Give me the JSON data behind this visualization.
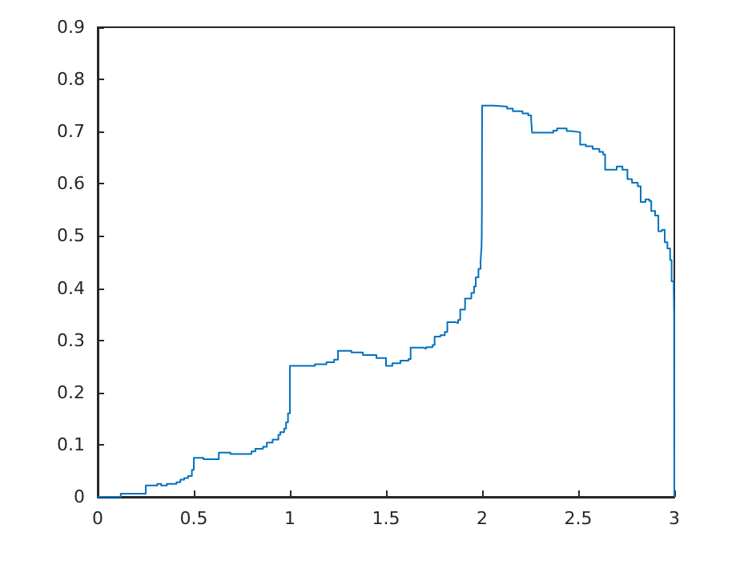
{
  "chart_data": {
    "type": "step",
    "color": "#0072bd",
    "xlim": [
      0,
      3
    ],
    "ylim": [
      0,
      0.9
    ],
    "xticks": [
      0,
      0.5,
      1,
      1.5,
      2,
      2.5,
      3
    ],
    "yticks": [
      0,
      0.1,
      0.2,
      0.3,
      0.4,
      0.5,
      0.6,
      0.7,
      0.8,
      0.9
    ],
    "grid": false,
    "marker": "none",
    "x": [
      0,
      0.12,
      0.25,
      0.31,
      0.33,
      0.36,
      0.41,
      0.43,
      0.45,
      0.47,
      0.49,
      0.5,
      0.55,
      0.63,
      0.69,
      0.8,
      0.82,
      0.86,
      0.88,
      0.91,
      0.94,
      0.95,
      0.97,
      0.98,
      0.99,
      1.0,
      1.13,
      1.19,
      1.23,
      1.25,
      1.32,
      1.38,
      1.45,
      1.5,
      1.533,
      1.575,
      1.617,
      1.628,
      1.694,
      1.708,
      1.742,
      1.753,
      1.783,
      1.806,
      1.819,
      1.861,
      1.875,
      1.886,
      1.911,
      1.944,
      1.958,
      1.967,
      1.981,
      1.992,
      1.997,
      1.998,
      1.999,
      2.0,
      2.06,
      2.13,
      2.16,
      2.21,
      2.24,
      2.255,
      2.26,
      2.37,
      2.39,
      2.44,
      2.46,
      2.51,
      2.54,
      2.575,
      2.61,
      2.63,
      2.64,
      2.7,
      2.73,
      2.756,
      2.78,
      2.81,
      2.825,
      2.85,
      2.87,
      2.88,
      2.9,
      2.917,
      2.936,
      2.95,
      2.964,
      2.978,
      2.986,
      2.997,
      2.999,
      3.0
    ],
    "values": [
      0,
      0.006,
      0.022,
      0.025,
      0.022,
      0.025,
      0.028,
      0.033,
      0.036,
      0.04,
      0.052,
      0.075,
      0.072,
      0.085,
      0.082,
      0.087,
      0.092,
      0.096,
      0.104,
      0.11,
      0.119,
      0.124,
      0.131,
      0.143,
      0.16,
      0.251,
      0.254,
      0.258,
      0.263,
      0.28,
      0.277,
      0.272,
      0.266,
      0.251,
      0.256,
      0.261,
      0.264,
      0.286,
      0.284,
      0.287,
      0.291,
      0.307,
      0.31,
      0.316,
      0.335,
      0.333,
      0.339,
      0.359,
      0.38,
      0.391,
      0.403,
      0.421,
      0.437,
      0.451,
      0.48,
      0.5,
      0.558,
      0.75,
      0.748,
      0.744,
      0.739,
      0.735,
      0.731,
      0.723,
      0.698,
      0.702,
      0.706,
      0.701,
      0.699,
      0.675,
      0.672,
      0.667,
      0.661,
      0.656,
      0.627,
      0.633,
      0.627,
      0.609,
      0.602,
      0.595,
      0.565,
      0.57,
      0.567,
      0.548,
      0.539,
      0.509,
      0.512,
      0.488,
      0.476,
      0.454,
      0.413,
      0.398,
      0.347,
      0
    ]
  }
}
